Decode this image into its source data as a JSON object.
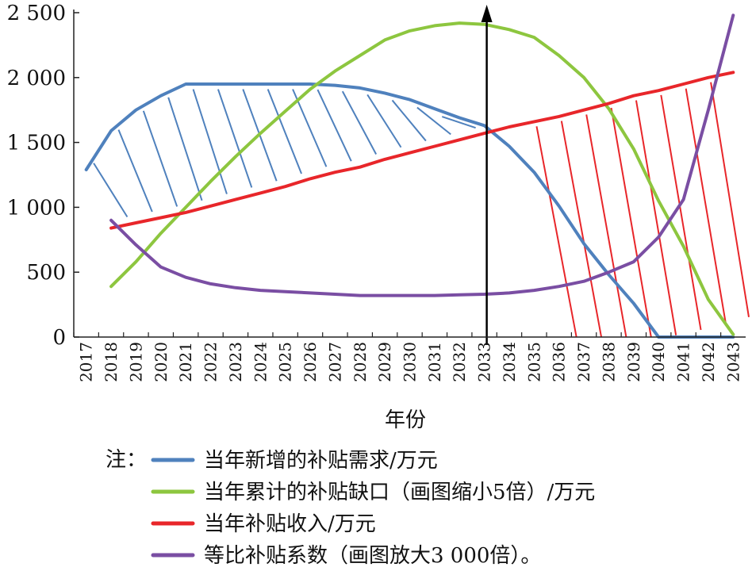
{
  "chart_data": {
    "type": "line",
    "xlabel": "年份",
    "ylabel": "",
    "x": [
      "2017",
      "2018",
      "2019",
      "2020",
      "2021",
      "2022",
      "2023",
      "2024",
      "2025",
      "2026",
      "2027",
      "2028",
      "2029",
      "2030",
      "2031",
      "2032",
      "2033",
      "2034",
      "2035",
      "2036",
      "2037",
      "2038",
      "2039",
      "2040",
      "2041",
      "2042",
      "2043"
    ],
    "yticks": [
      "0",
      "500",
      "1 000",
      "1 500",
      "2 000",
      "2 500"
    ],
    "ylim": [
      0,
      2500
    ],
    "grid": false,
    "series": [
      {
        "name": "当年新增的补贴需求/万元",
        "color": "#4f81bd",
        "values": [
          1290,
          1590,
          1750,
          1860,
          1950,
          1950,
          1950,
          1950,
          1950,
          1950,
          1940,
          1920,
          1880,
          1830,
          1760,
          1690,
          1630,
          1470,
          1270,
          1010,
          720,
          480,
          260,
          0,
          0,
          0,
          0
        ]
      },
      {
        "name": "当年累计的补贴缺口（画图缩小5倍）/万元",
        "color": "#8dc63f",
        "values": [
          null,
          390,
          580,
          800,
          1000,
          1200,
          1390,
          1570,
          1740,
          1910,
          2050,
          2170,
          2290,
          2360,
          2400,
          2420,
          2410,
          2370,
          2310,
          2170,
          2000,
          1760,
          1450,
          1050,
          700,
          290,
          20
        ]
      },
      {
        "name": "当年补贴收入/万元",
        "color": "#e8262a",
        "values": [
          null,
          840,
          880,
          920,
          960,
          1010,
          1060,
          1110,
          1160,
          1220,
          1270,
          1310,
          1370,
          1420,
          1470,
          1520,
          1570,
          1620,
          1660,
          1700,
          1750,
          1800,
          1860,
          1900,
          1950,
          2000,
          2040
        ]
      },
      {
        "name": "等比补贴系数（画图放大3 000倍）。",
        "color": "#7a4ea3",
        "values": [
          null,
          900,
          710,
          540,
          460,
          410,
          380,
          360,
          350,
          340,
          330,
          320,
          320,
          320,
          320,
          325,
          330,
          340,
          360,
          390,
          430,
          500,
          580,
          770,
          1060,
          1750,
          2480
        ]
      }
    ],
    "annotations": [
      {
        "type": "vertical-arrow",
        "x": "2033"
      },
      {
        "type": "hatch",
        "region": "between blue and red",
        "x_range": [
          "2017",
          "2032"
        ],
        "color": "#4f81bd"
      },
      {
        "type": "hatch",
        "region": "between red and zero",
        "x_range": [
          "2035",
          "2043"
        ],
        "color": "#e8262a"
      }
    ],
    "legend": {
      "placement": "bottom",
      "title": "注："
    }
  }
}
